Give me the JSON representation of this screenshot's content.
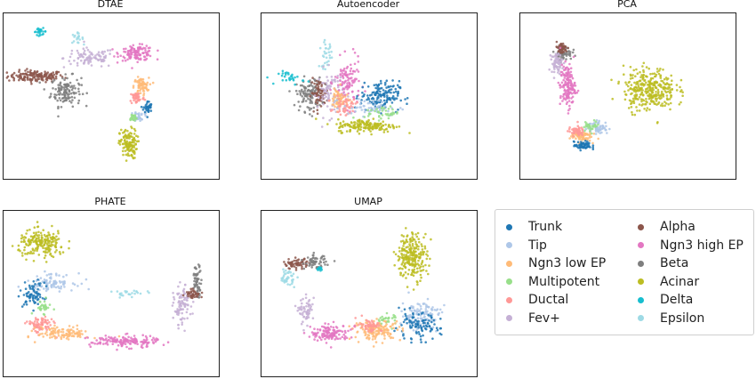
{
  "chart_data": [
    {
      "type": "scatter",
      "title": "DTAE",
      "xlabel": "",
      "ylabel": "",
      "clusters": [
        {
          "class": "Alpha",
          "center": [
            1.5,
            6.2
          ],
          "spread": [
            1.3,
            0.35
          ],
          "n": 150
        },
        {
          "class": "Beta",
          "center": [
            2.9,
            5.3
          ],
          "spread": [
            0.7,
            0.9
          ],
          "n": 130
        },
        {
          "class": "Delta",
          "center": [
            1.7,
            8.9
          ],
          "spread": [
            0.3,
            0.2
          ],
          "n": 25
        },
        {
          "class": "Epsilon",
          "center": [
            3.4,
            8.5
          ],
          "spread": [
            0.3,
            0.3
          ],
          "n": 20
        },
        {
          "class": "Fev+",
          "center": [
            4.0,
            7.3
          ],
          "spread": [
            1.2,
            0.6
          ],
          "n": 90
        },
        {
          "class": "Ngn3 high EP",
          "center": [
            6.2,
            7.6
          ],
          "spread": [
            0.8,
            0.45
          ],
          "n": 120
        },
        {
          "class": "Ngn3 low EP",
          "center": [
            6.4,
            5.6
          ],
          "spread": [
            0.35,
            0.5
          ],
          "n": 70
        },
        {
          "class": "Ductal",
          "center": [
            6.2,
            4.9
          ],
          "spread": [
            0.35,
            0.4
          ],
          "n": 50
        },
        {
          "class": "Trunk",
          "center": [
            6.7,
            4.3
          ],
          "spread": [
            0.2,
            0.4
          ],
          "n": 40
        },
        {
          "class": "Tip",
          "center": [
            6.3,
            3.8
          ],
          "spread": [
            0.25,
            0.3
          ],
          "n": 30
        },
        {
          "class": "Multipotent",
          "center": [
            6.0,
            3.7
          ],
          "spread": [
            0.2,
            0.25
          ],
          "n": 25
        },
        {
          "class": "Acinar",
          "center": [
            5.8,
            2.1
          ],
          "spread": [
            0.4,
            0.9
          ],
          "n": 130
        }
      ]
    },
    {
      "type": "scatter",
      "title": "Autoencoder",
      "xlabel": "",
      "ylabel": "",
      "clusters": [
        {
          "class": "Beta",
          "center": [
            2.2,
            5.1
          ],
          "spread": [
            0.6,
            1.0
          ],
          "n": 110
        },
        {
          "class": "Alpha",
          "center": [
            2.7,
            5.2
          ],
          "spread": [
            0.4,
            0.8
          ],
          "n": 70
        },
        {
          "class": "Delta",
          "center": [
            1.4,
            6.1
          ],
          "spread": [
            0.6,
            0.4
          ],
          "n": 30
        },
        {
          "class": "Epsilon",
          "center": [
            3.0,
            7.5
          ],
          "spread": [
            0.3,
            0.8
          ],
          "n": 30
        },
        {
          "class": "Fev+",
          "center": [
            3.2,
            5.2
          ],
          "spread": [
            0.6,
            1.4
          ],
          "n": 80
        },
        {
          "class": "Ngn3 high EP",
          "center": [
            4.0,
            5.8
          ],
          "spread": [
            0.6,
            1.4
          ],
          "n": 110
        },
        {
          "class": "Ngn3 low EP",
          "center": [
            3.6,
            4.8
          ],
          "spread": [
            0.4,
            0.7
          ],
          "n": 60
        },
        {
          "class": "Ductal",
          "center": [
            3.9,
            4.4
          ],
          "spread": [
            0.5,
            0.5
          ],
          "n": 50
        },
        {
          "class": "Trunk",
          "center": [
            5.5,
            5.0
          ],
          "spread": [
            0.9,
            0.9
          ],
          "n": 150
        },
        {
          "class": "Tip",
          "center": [
            5.1,
            4.3
          ],
          "spread": [
            1.3,
            0.5
          ],
          "n": 60
        },
        {
          "class": "Multipotent",
          "center": [
            5.6,
            4.0
          ],
          "spread": [
            0.8,
            0.4
          ],
          "n": 40
        },
        {
          "class": "Acinar",
          "center": [
            4.9,
            3.2
          ],
          "spread": [
            1.4,
            0.4
          ],
          "n": 170
        }
      ]
    },
    {
      "type": "scatter",
      "title": "PCA",
      "xlabel": "",
      "ylabel": "",
      "clusters": [
        {
          "class": "Beta",
          "center": [
            2.0,
            7.6
          ],
          "spread": [
            0.4,
            0.4
          ],
          "n": 60
        },
        {
          "class": "Alpha",
          "center": [
            1.9,
            7.9
          ],
          "spread": [
            0.3,
            0.35
          ],
          "n": 50
        },
        {
          "class": "Fev+",
          "center": [
            1.7,
            7.0
          ],
          "spread": [
            0.25,
            0.6
          ],
          "n": 60
        },
        {
          "class": "Ngn3 high EP",
          "center": [
            2.2,
            5.6
          ],
          "spread": [
            0.35,
            1.3
          ],
          "n": 160
        },
        {
          "class": "Ngn3 low EP",
          "center": [
            2.8,
            2.6
          ],
          "spread": [
            0.5,
            0.35
          ],
          "n": 80
        },
        {
          "class": "Ductal",
          "center": [
            2.6,
            2.9
          ],
          "spread": [
            0.35,
            0.3
          ],
          "n": 50
        },
        {
          "class": "Trunk",
          "center": [
            2.9,
            2.0
          ],
          "spread": [
            0.4,
            0.25
          ],
          "n": 60
        },
        {
          "class": "Tip",
          "center": [
            3.6,
            3.1
          ],
          "spread": [
            0.5,
            0.4
          ],
          "n": 60
        },
        {
          "class": "Multipotent",
          "center": [
            3.3,
            3.2
          ],
          "spread": [
            0.4,
            0.3
          ],
          "n": 30
        },
        {
          "class": "Acinar",
          "center": [
            6.0,
            5.4
          ],
          "spread": [
            1.2,
            1.3
          ],
          "n": 330
        }
      ]
    },
    {
      "type": "scatter",
      "title": "PHATE",
      "xlabel": "",
      "ylabel": "",
      "clusters": [
        {
          "class": "Acinar",
          "center": [
            1.8,
            8.0
          ],
          "spread": [
            1.1,
            0.8
          ],
          "n": 200
        },
        {
          "class": "Tip",
          "center": [
            2.2,
            5.7
          ],
          "spread": [
            1.1,
            0.5
          ],
          "n": 90
        },
        {
          "class": "Trunk",
          "center": [
            1.4,
            4.9
          ],
          "spread": [
            0.5,
            0.8
          ],
          "n": 70
        },
        {
          "class": "Multipotent",
          "center": [
            1.8,
            4.2
          ],
          "spread": [
            0.4,
            0.4
          ],
          "n": 30
        },
        {
          "class": "Ductal",
          "center": [
            1.7,
            3.1
          ],
          "spread": [
            0.6,
            0.5
          ],
          "n": 80
        },
        {
          "class": "Ngn3 low EP",
          "center": [
            2.8,
            2.6
          ],
          "spread": [
            1.2,
            0.4
          ],
          "n": 110
        },
        {
          "class": "Ngn3 high EP",
          "center": [
            5.6,
            2.1
          ],
          "spread": [
            1.6,
            0.35
          ],
          "n": 150
        },
        {
          "class": "Fev+",
          "center": [
            8.3,
            4.2
          ],
          "spread": [
            0.4,
            1.2
          ],
          "n": 90
        },
        {
          "class": "Beta",
          "center": [
            9.0,
            5.8
          ],
          "spread": [
            0.2,
            0.9
          ],
          "n": 60
        },
        {
          "class": "Alpha",
          "center": [
            8.8,
            5.0
          ],
          "spread": [
            0.35,
            0.3
          ],
          "n": 40
        },
        {
          "class": "Epsilon",
          "center": [
            6.0,
            5.0
          ],
          "spread": [
            0.9,
            0.2
          ],
          "n": 25
        }
      ]
    },
    {
      "type": "scatter",
      "title": "UMAP",
      "xlabel": "",
      "ylabel": "",
      "clusters": [
        {
          "class": "Acinar",
          "center": [
            7.0,
            7.3
          ],
          "spread": [
            0.7,
            1.4
          ],
          "n": 240
        },
        {
          "class": "Tip",
          "center": [
            7.4,
            3.7
          ],
          "spread": [
            0.9,
            0.9
          ],
          "n": 120
        },
        {
          "class": "Trunk",
          "center": [
            7.2,
            3.0
          ],
          "spread": [
            1.1,
            0.8
          ],
          "n": 100
        },
        {
          "class": "Multipotent",
          "center": [
            5.8,
            3.4
          ],
          "spread": [
            0.5,
            0.4
          ],
          "n": 30
        },
        {
          "class": "Ngn3 low EP",
          "center": [
            5.4,
            2.8
          ],
          "spread": [
            1.1,
            0.6
          ],
          "n": 150
        },
        {
          "class": "Ductal",
          "center": [
            5.0,
            3.1
          ],
          "spread": [
            0.6,
            0.4
          ],
          "n": 50
        },
        {
          "class": "Ngn3 high EP",
          "center": [
            3.2,
            2.6
          ],
          "spread": [
            0.9,
            0.5
          ],
          "n": 130
        },
        {
          "class": "Fev+",
          "center": [
            2.1,
            3.9
          ],
          "spread": [
            0.35,
            0.8
          ],
          "n": 60
        },
        {
          "class": "Epsilon",
          "center": [
            1.2,
            6.0
          ],
          "spread": [
            0.35,
            0.5
          ],
          "n": 40
        },
        {
          "class": "Alpha",
          "center": [
            1.6,
            6.8
          ],
          "spread": [
            0.6,
            0.3
          ],
          "n": 60
        },
        {
          "class": "Beta",
          "center": [
            2.5,
            6.9
          ],
          "spread": [
            0.5,
            0.4
          ],
          "n": 60
        },
        {
          "class": "Delta",
          "center": [
            2.7,
            6.5
          ],
          "spread": [
            0.15,
            0.15
          ],
          "n": 15
        }
      ]
    }
  ],
  "legend": {
    "items": [
      {
        "label": "Trunk",
        "color": "#1f77b4"
      },
      {
        "label": "Tip",
        "color": "#aec7e8"
      },
      {
        "label": "Ngn3 low EP",
        "color": "#ffbb78"
      },
      {
        "label": "Multipotent",
        "color": "#98df8a"
      },
      {
        "label": "Ductal",
        "color": "#ff9896"
      },
      {
        "label": "Fev+",
        "color": "#c5b0d5"
      },
      {
        "label": "Alpha",
        "color": "#8c564b"
      },
      {
        "label": "Ngn3 high EP",
        "color": "#e377c2"
      },
      {
        "label": "Beta",
        "color": "#7f7f7f"
      },
      {
        "label": "Acinar",
        "color": "#bcbd22"
      },
      {
        "label": "Delta",
        "color": "#17becf"
      },
      {
        "label": "Epsilon",
        "color": "#9edae5"
      }
    ]
  }
}
